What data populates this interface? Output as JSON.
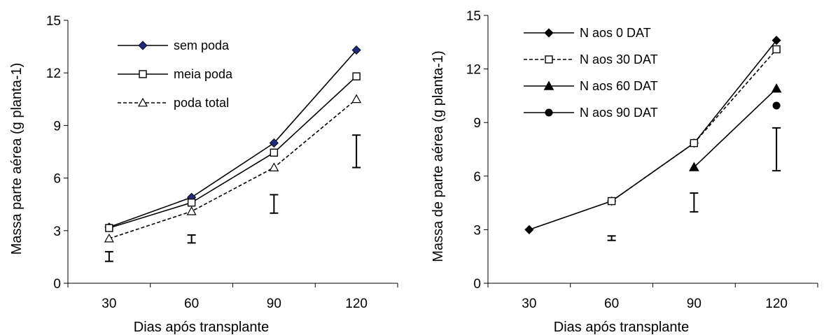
{
  "chart_data": [
    {
      "type": "line",
      "title": "",
      "xlabel": "Dias após transplante",
      "ylabel": "Massa parte aérea (g planta-1)",
      "x_ticks": [
        "30",
        "60",
        "90",
        "120"
      ],
      "y_ticks": [
        "0",
        "3",
        "6",
        "9",
        "12",
        "15"
      ],
      "xlim": [
        15,
        135
      ],
      "ylim": [
        0,
        15
      ],
      "grid": false,
      "legend_position": "top-left",
      "series": [
        {
          "name": "sem poda",
          "x": [
            30,
            60,
            90,
            120
          ],
          "y": [
            3.2,
            4.9,
            8.0,
            13.3
          ],
          "marker": "diamond-filled",
          "marker_color": "#1f2a7a",
          "line": "solid"
        },
        {
          "name": "meia poda",
          "x": [
            30,
            60,
            90,
            120
          ],
          "y": [
            3.15,
            4.6,
            7.45,
            11.8
          ],
          "marker": "square-open",
          "line": "solid"
        },
        {
          "name": "poda total",
          "x": [
            30,
            60,
            90,
            120
          ],
          "y": [
            2.55,
            4.1,
            6.6,
            10.5
          ],
          "marker": "triangle-open",
          "line": "dashed"
        }
      ],
      "error_bars": [
        {
          "x": 30,
          "low": 1.25,
          "high": 1.8
        },
        {
          "x": 60,
          "low": 2.3,
          "high": 2.75
        },
        {
          "x": 90,
          "low": 4.0,
          "high": 5.05
        },
        {
          "x": 120,
          "low": 6.6,
          "high": 8.45
        }
      ]
    },
    {
      "type": "line",
      "title": "",
      "xlabel": "Dias após transplante",
      "ylabel": "Massa de parte aérea (g planta-1)",
      "x_ticks": [
        "30",
        "60",
        "90",
        "120"
      ],
      "y_ticks": [
        "0",
        "3",
        "6",
        "9",
        "12",
        "15"
      ],
      "xlim": [
        15,
        135
      ],
      "ylim": [
        0,
        15
      ],
      "grid": false,
      "legend_position": "top-left",
      "series": [
        {
          "name": "N aos 0 DAT",
          "x": [
            30,
            60,
            90,
            120
          ],
          "y": [
            3.0,
            4.6,
            7.85,
            13.6
          ],
          "marker": "diamond-filled",
          "line": "solid"
        },
        {
          "name": "N aos 30 DAT",
          "x": [
            60,
            90,
            120
          ],
          "y": [
            4.6,
            7.85,
            13.1
          ],
          "marker": "square-open",
          "line": "dashed"
        },
        {
          "name": "N aos 60 DAT",
          "x": [
            90,
            120
          ],
          "y": [
            6.5,
            10.9
          ],
          "marker": "triangle-filled",
          "line": "solid"
        },
        {
          "name": "N aos 90 DAT",
          "x": [
            120
          ],
          "y": [
            9.95
          ],
          "marker": "circle-filled",
          "line": "solid"
        }
      ],
      "error_bars": [
        {
          "x": 60,
          "low": 2.4,
          "high": 2.65
        },
        {
          "x": 90,
          "low": 4.0,
          "high": 5.05
        },
        {
          "x": 120,
          "low": 6.3,
          "high": 8.7
        }
      ]
    }
  ]
}
